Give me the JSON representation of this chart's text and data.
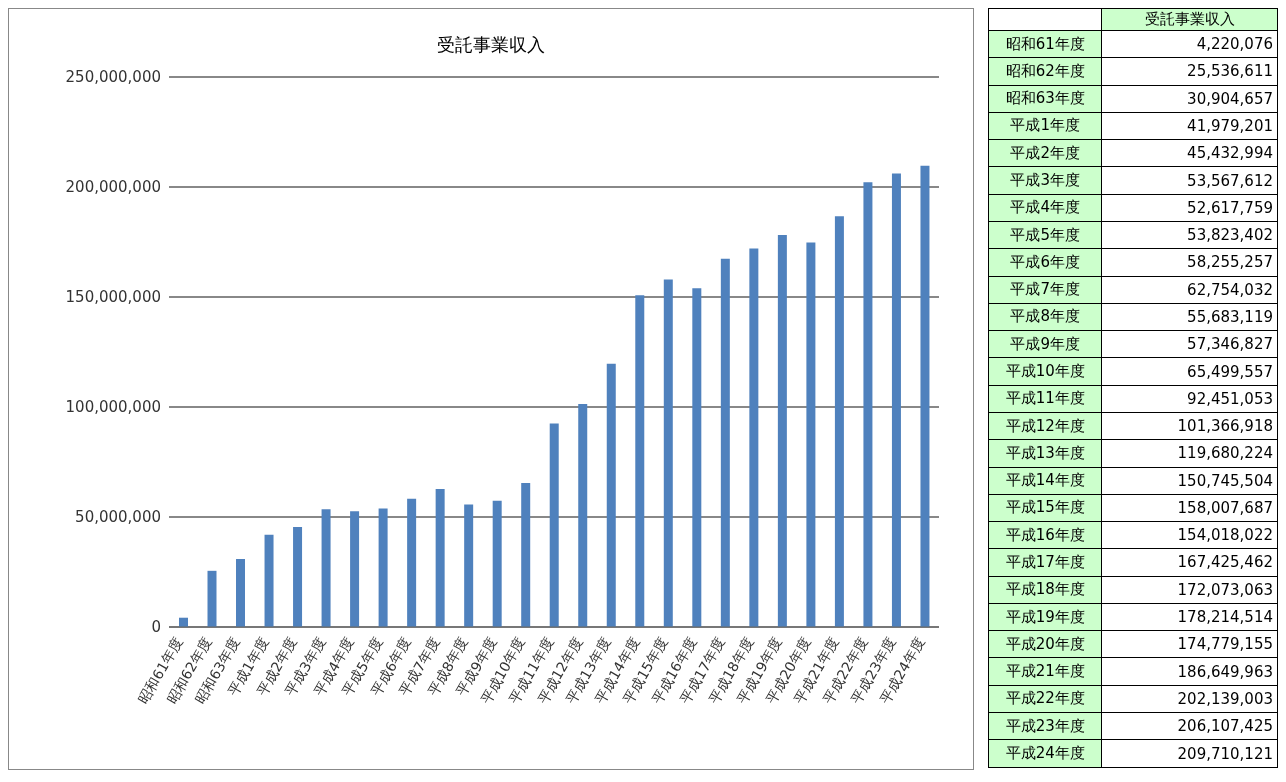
{
  "chart_data": {
    "type": "bar",
    "title": "受託事業収入",
    "categories": [
      "昭和61年度",
      "昭和62年度",
      "昭和63年度",
      "平成1年度",
      "平成2年度",
      "平成3年度",
      "平成4年度",
      "平成5年度",
      "平成6年度",
      "平成7年度",
      "平成8年度",
      "平成9年度",
      "平成10年度",
      "平成11年度",
      "平成12年度",
      "平成13年度",
      "平成14年度",
      "平成15年度",
      "平成16年度",
      "平成17年度",
      "平成18年度",
      "平成19年度",
      "平成20年度",
      "平成21年度",
      "平成22年度",
      "平成23年度",
      "平成24年度"
    ],
    "series": [
      {
        "name": "受託事業収入",
        "color": "#4f81bd",
        "values": [
          4220076,
          25536611,
          30904657,
          41979201,
          45432994,
          53567612,
          52617759,
          53823402,
          58255257,
          62754032,
          55683119,
          57346827,
          65499557,
          92451053,
          101366918,
          119680224,
          150745504,
          158007687,
          154018022,
          167425462,
          172073063,
          178214514,
          174779155,
          186649963,
          202139003,
          206107425,
          209710121
        ]
      }
    ],
    "ylim": [
      0,
      250000000
    ],
    "yticks": [
      {
        "value": 0,
        "label": "0"
      },
      {
        "value": 50000000,
        "label": "50,000,000"
      },
      {
        "value": 100000000,
        "label": "100,000,000"
      },
      {
        "value": 150000000,
        "label": "150,000,000"
      },
      {
        "value": 200000000,
        "label": "200,000,000"
      },
      {
        "value": 250000000,
        "label": "250,000,000"
      }
    ],
    "value_labels": [
      "4,220,076",
      "25,536,611",
      "30,904,657",
      "41,979,201",
      "45,432,994",
      "53,567,612",
      "52,617,759",
      "53,823,402",
      "58,255,257",
      "62,754,032",
      "55,683,119",
      "57,346,827",
      "65,499,557",
      "92,451,053",
      "101,366,918",
      "119,680,224",
      "150,745,504",
      "158,007,687",
      "154,018,022",
      "167,425,462",
      "172,073,063",
      "178,214,514",
      "174,779,155",
      "186,649,963",
      "202,139,003",
      "206,107,425",
      "209,710,121"
    ],
    "grid": "y",
    "legend": false
  }
}
